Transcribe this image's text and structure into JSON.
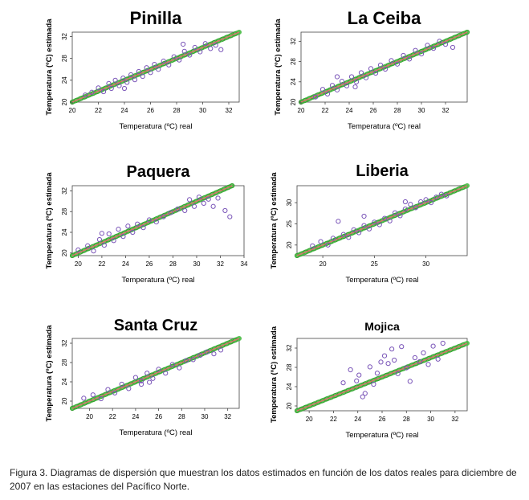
{
  "caption": "Figura 3. Diagramas de dispersión que muestran los datos estimados en función de los datos reales para diciembre de 2007 en las estaciones del Pacífico Norte.",
  "colors": {
    "points": "#7a55b8",
    "fit_line": "#e07070",
    "green_band": "#3fb83a"
  },
  "chart_data": [
    {
      "type": "scatter",
      "title": "Pinilla",
      "xlabel": "Temperatura (ºC) real",
      "ylabel": "Temperatura (ºC) estimada",
      "xlim": [
        20,
        32.8
      ],
      "ylim": [
        20,
        32.8
      ],
      "xticks": [
        20,
        22,
        24,
        26,
        28,
        30,
        32
      ],
      "yticks": [
        20,
        24,
        28,
        32
      ],
      "series": [
        {
          "values": [
            [
              21.0,
              21.3
            ],
            [
              21.5,
              21.8
            ],
            [
              22.0,
              22.6
            ],
            [
              22.4,
              21.9
            ],
            [
              22.8,
              23.4
            ],
            [
              23.0,
              22.5
            ],
            [
              23.3,
              24.0
            ],
            [
              23.6,
              23.0
            ],
            [
              23.9,
              24.4
            ],
            [
              24.2,
              23.6
            ],
            [
              24.5,
              25.0
            ],
            [
              24.8,
              24.1
            ],
            [
              25.1,
              25.6
            ],
            [
              25.4,
              24.7
            ],
            [
              25.7,
              26.3
            ],
            [
              26.0,
              25.4
            ],
            [
              26.3,
              26.9
            ],
            [
              26.6,
              26.0
            ],
            [
              27.0,
              27.5
            ],
            [
              27.4,
              26.8
            ],
            [
              27.8,
              28.3
            ],
            [
              28.2,
              27.7
            ],
            [
              28.6,
              29.3
            ],
            [
              29.0,
              28.6
            ],
            [
              29.4,
              30.0
            ],
            [
              29.8,
              29.2
            ],
            [
              30.2,
              30.7
            ],
            [
              30.6,
              29.8
            ],
            [
              31.0,
              30.4
            ],
            [
              31.4,
              29.6
            ],
            [
              28.5,
              30.6
            ],
            [
              24.0,
              22.5
            ]
          ]
        }
      ]
    },
    {
      "type": "scatter",
      "title": "La Ceiba",
      "xlabel": "Temperatura (ºC) real",
      "ylabel": "Temperatura (ºC) estimada",
      "xlim": [
        20,
        33.8
      ],
      "ylim": [
        20,
        33.8
      ],
      "xticks": [
        20,
        22,
        24,
        26,
        28,
        30,
        32
      ],
      "yticks": [
        20,
        24,
        28,
        32
      ],
      "series": [
        {
          "values": [
            [
              21.2,
              21.0
            ],
            [
              21.8,
              22.5
            ],
            [
              22.2,
              21.6
            ],
            [
              22.6,
              23.3
            ],
            [
              23.0,
              22.4
            ],
            [
              23.4,
              24.1
            ],
            [
              23.8,
              23.2
            ],
            [
              24.2,
              25.0
            ],
            [
              24.6,
              24.0
            ],
            [
              25.0,
              25.8
            ],
            [
              25.4,
              24.8
            ],
            [
              25.8,
              26.6
            ],
            [
              26.2,
              25.7
            ],
            [
              26.6,
              27.3
            ],
            [
              27.0,
              26.5
            ],
            [
              27.5,
              28.2
            ],
            [
              28.0,
              27.5
            ],
            [
              28.5,
              29.2
            ],
            [
              29.0,
              28.5
            ],
            [
              29.5,
              30.2
            ],
            [
              30.0,
              29.5
            ],
            [
              30.5,
              31.2
            ],
            [
              31.0,
              30.6
            ],
            [
              31.5,
              32.0
            ],
            [
              32.0,
              31.4
            ],
            [
              32.6,
              30.8
            ],
            [
              23.0,
              25.0
            ],
            [
              24.5,
              23.0
            ]
          ]
        }
      ]
    },
    {
      "type": "scatter",
      "title": "Paquera",
      "xlabel": "Temperatura (ºC) real",
      "ylabel": "Temperatura (ºC) estimada",
      "xlim": [
        19.5,
        34
      ],
      "ylim": [
        19.5,
        33
      ],
      "xticks": [
        20,
        22,
        24,
        26,
        28,
        30,
        32,
        34
      ],
      "yticks": [
        20,
        24,
        28,
        32
      ],
      "series": [
        {
          "values": [
            [
              20.0,
              20.6
            ],
            [
              20.8,
              21.4
            ],
            [
              21.3,
              20.4
            ],
            [
              21.8,
              22.6
            ],
            [
              22.2,
              21.5
            ],
            [
              22.6,
              23.7
            ],
            [
              23.0,
              22.4
            ],
            [
              23.4,
              24.6
            ],
            [
              23.8,
              23.2
            ],
            [
              24.2,
              25.2
            ],
            [
              24.6,
              24.0
            ],
            [
              25.0,
              25.6
            ],
            [
              25.5,
              24.9
            ],
            [
              26.0,
              26.4
            ],
            [
              26.6,
              26.0
            ],
            [
              27.2,
              27.0
            ],
            [
              27.8,
              27.8
            ],
            [
              28.4,
              28.5
            ],
            [
              29.0,
              28.2
            ],
            [
              29.4,
              30.3
            ],
            [
              29.8,
              29.0
            ],
            [
              30.2,
              30.8
            ],
            [
              30.6,
              29.6
            ],
            [
              31.0,
              30.4
            ],
            [
              31.4,
              29.0
            ],
            [
              31.8,
              30.6
            ],
            [
              32.4,
              28.2
            ],
            [
              32.8,
              27.0
            ],
            [
              22.0,
              23.8
            ]
          ]
        }
      ]
    },
    {
      "type": "scatter",
      "title": "Liberia",
      "xlabel": "Temperatura (ºC) real",
      "ylabel": "Temperatura (ºC) estimada",
      "xlim": [
        17.5,
        34
      ],
      "ylim": [
        17.5,
        34
      ],
      "xticks": [
        20,
        25,
        30
      ],
      "yticks": [
        20,
        25,
        30
      ],
      "series": [
        {
          "values": [
            [
              19.0,
              19.8
            ],
            [
              19.8,
              20.8
            ],
            [
              20.5,
              20.0
            ],
            [
              21.0,
              21.6
            ],
            [
              21.5,
              25.6
            ],
            [
              22.0,
              22.5
            ],
            [
              22.5,
              21.8
            ],
            [
              23.0,
              23.6
            ],
            [
              23.5,
              22.9
            ],
            [
              24.0,
              24.6
            ],
            [
              24.5,
              23.8
            ],
            [
              25.0,
              25.4
            ],
            [
              25.5,
              24.8
            ],
            [
              26.0,
              26.3
            ],
            [
              26.5,
              25.7
            ],
            [
              27.0,
              27.6
            ],
            [
              27.5,
              26.9
            ],
            [
              28.0,
              28.5
            ],
            [
              28.5,
              29.6
            ],
            [
              29.0,
              28.8
            ],
            [
              29.5,
              30.2
            ],
            [
              30.0,
              30.7
            ],
            [
              30.5,
              30.0
            ],
            [
              31.0,
              31.3
            ],
            [
              31.5,
              32.0
            ],
            [
              32.0,
              31.6
            ],
            [
              24.0,
              26.8
            ],
            [
              28.0,
              30.2
            ]
          ]
        }
      ]
    },
    {
      "type": "scatter",
      "title": "Santa Cruz",
      "xlabel": "Temperatura (ºC) real",
      "ylabel": "Temperatura (ºC) estimada",
      "xlim": [
        18.5,
        33
      ],
      "ylim": [
        18.5,
        33
      ],
      "xticks": [
        20,
        22,
        24,
        26,
        28,
        30,
        32
      ],
      "yticks": [
        20,
        24,
        28,
        32
      ],
      "series": [
        {
          "values": [
            [
              19.5,
              20.6
            ],
            [
              20.3,
              21.3
            ],
            [
              21.0,
              20.5
            ],
            [
              21.6,
              22.4
            ],
            [
              22.2,
              21.7
            ],
            [
              22.8,
              23.5
            ],
            [
              23.4,
              22.6
            ],
            [
              24.0,
              24.9
            ],
            [
              24.5,
              23.5
            ],
            [
              25.0,
              25.8
            ],
            [
              25.5,
              24.7
            ],
            [
              26.0,
              26.6
            ],
            [
              26.6,
              25.8
            ],
            [
              27.2,
              27.6
            ],
            [
              27.8,
              26.9
            ],
            [
              28.4,
              28.4
            ],
            [
              29.0,
              28.6
            ],
            [
              29.6,
              29.5
            ],
            [
              30.2,
              30.2
            ],
            [
              30.8,
              29.8
            ],
            [
              31.4,
              30.6
            ],
            [
              24.5,
              24.2
            ],
            [
              25.2,
              23.9
            ]
          ]
        }
      ]
    },
    {
      "type": "scatter",
      "title": "Mojica",
      "xlabel": "Temperatura (ºC) real",
      "ylabel": "Temperatura (ºC) estimada",
      "xlim": [
        19,
        33
      ],
      "ylim": [
        19,
        34
      ],
      "xticks": [
        20,
        22,
        24,
        26,
        28,
        30,
        32
      ],
      "yticks": [
        20,
        24,
        28,
        32
      ],
      "series": [
        {
          "values": [
            [
              22.8,
              24.8
            ],
            [
              23.4,
              27.5
            ],
            [
              23.9,
              25.2
            ],
            [
              24.1,
              26.4
            ],
            [
              24.4,
              21.9
            ],
            [
              24.6,
              22.6
            ],
            [
              25.0,
              28.1
            ],
            [
              25.3,
              24.5
            ],
            [
              25.6,
              26.8
            ],
            [
              25.9,
              29.1
            ],
            [
              26.2,
              30.4
            ],
            [
              26.5,
              28.8
            ],
            [
              26.8,
              31.8
            ],
            [
              27.0,
              29.5
            ],
            [
              27.3,
              26.7
            ],
            [
              27.6,
              32.3
            ],
            [
              28.0,
              27.9
            ],
            [
              28.3,
              25.1
            ],
            [
              28.7,
              30.0
            ],
            [
              29.1,
              29.2
            ],
            [
              29.4,
              31.0
            ],
            [
              29.8,
              28.6
            ],
            [
              30.2,
              32.4
            ],
            [
              30.6,
              29.7
            ],
            [
              31.0,
              33.0
            ]
          ]
        }
      ]
    }
  ]
}
